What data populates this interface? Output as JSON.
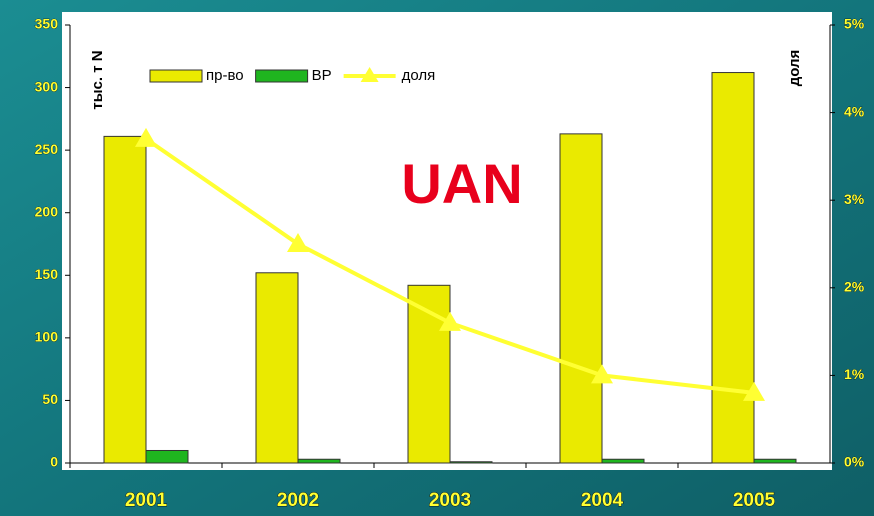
{
  "chart_data": {
    "type": "bar",
    "annotation": "UAN",
    "ylabel": "тыс. т N",
    "y2label": "доля",
    "categories": [
      "2001",
      "2002",
      "2003",
      "2004",
      "2005"
    ],
    "series": [
      {
        "name": "пр-во",
        "color": "#eaea00",
        "values": [
          261,
          152,
          142,
          263,
          312
        ]
      },
      {
        "name": "ВР",
        "color": "#1fb51f",
        "values": [
          10,
          3,
          1,
          3,
          3
        ]
      },
      {
        "name": "доля",
        "color": "#ffff33",
        "type": "line",
        "axis": "y2",
        "values": [
          3.7,
          2.5,
          1.6,
          1.0,
          0.8
        ]
      }
    ],
    "ylim": [
      0,
      350
    ],
    "yticks": [
      0,
      50,
      100,
      150,
      200,
      250,
      300,
      350
    ],
    "y2lim": [
      0,
      5
    ],
    "y2ticks": [
      {
        "value": 0,
        "label": "0%"
      },
      {
        "value": 1,
        "label": "1%"
      },
      {
        "value": 2,
        "label": "2%"
      },
      {
        "value": 3,
        "label": "3%"
      },
      {
        "value": 4,
        "label": "4%"
      },
      {
        "value": 5,
        "label": "5%"
      }
    ]
  }
}
